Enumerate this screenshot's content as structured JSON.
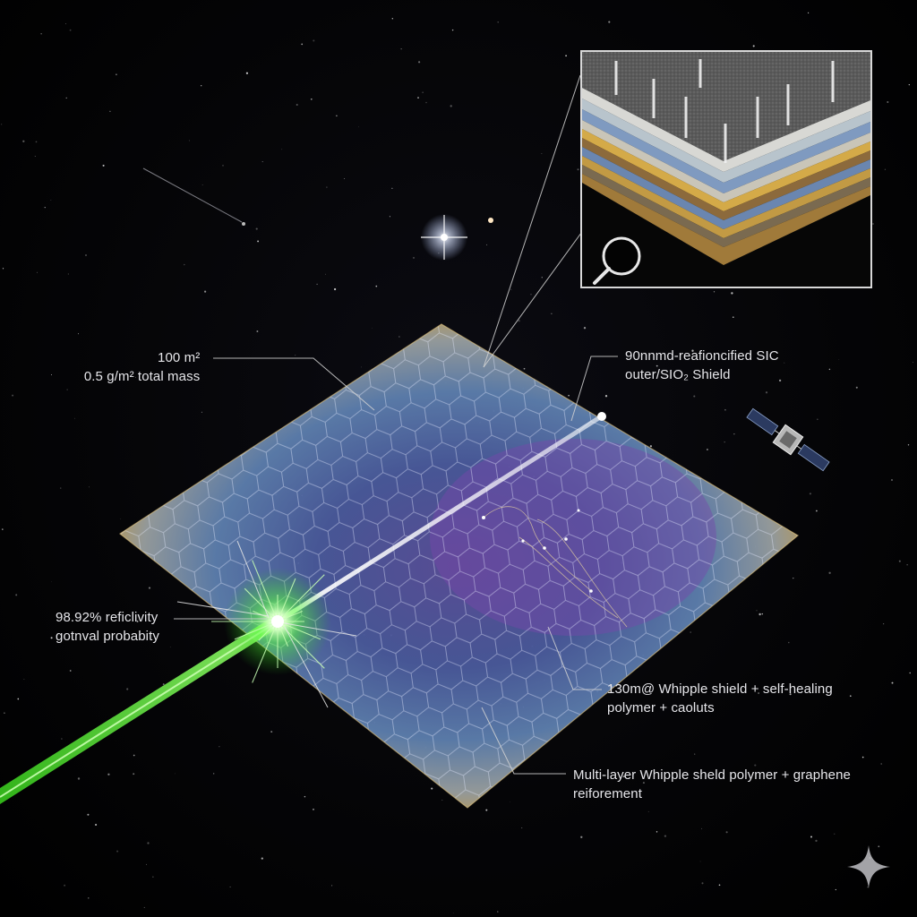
{
  "diagram": {
    "labels": {
      "area": {
        "line1": "100 m²",
        "line2": "0.5 g/m² total mass"
      },
      "shield": {
        "line1": "90nnmd-reafioncified SIC",
        "line2": "outer/SIO₂ Shield"
      },
      "reflectivity": {
        "line1": "98.92% reficlivity",
        "line2": "gotnval probabity"
      },
      "whipple": {
        "line1": "130m@ Whipple shield + self-healing",
        "line2": "polymer + caoluts"
      },
      "multilayer": {
        "line1": "Multi-layer Whipple sheld polymer + graphene",
        "line2": "reiforement"
      }
    },
    "elements": {
      "sail": "hexagonal-lightsail-panel",
      "laser": "green-laser-beam",
      "spacecraft": "satellite",
      "star": "bright-star",
      "inset": "cross-section-layers-inset",
      "magnifier": "magnifier-icon",
      "sparkle": "sparkle-icon"
    },
    "colors": {
      "background": "#000000",
      "laser": "#5cff3a",
      "sail_edge": "#c8a04a",
      "sail_center": "#5a5fa8",
      "sail_purple": "#6a4a9a",
      "leader_line": "#d0d0d0",
      "inset_border": "#d8d8d8"
    }
  }
}
